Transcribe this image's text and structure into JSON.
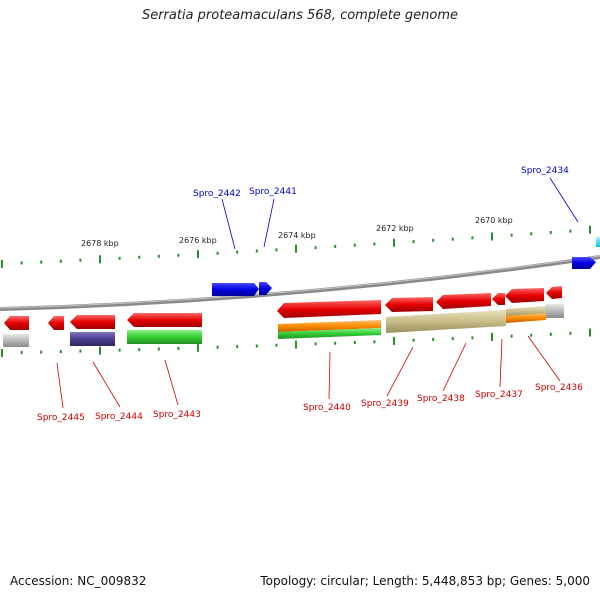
{
  "title": "Serratia proteamaculans 568, complete genome",
  "footer": {
    "accession": "Accession: NC_009832",
    "summary": "Topology: circular; Length: 5,448,853 bp; Genes: 5,000"
  },
  "colors": {
    "backbone": "#808080",
    "tick": "#2e8b2e",
    "forward_gene": "#0000cc",
    "reverse_gene": "#e00000",
    "label_forward": "#0000cc",
    "label_reverse": "#cc0000",
    "orange": "#ff8c00",
    "green": "#33cc33",
    "purple": "#4b3f8f",
    "olive": "#c8bc88",
    "gray": "#b8b8b8",
    "cyan": "#00e5ff"
  },
  "ruler": {
    "labels": [
      "2678 kbp",
      "2676 kbp",
      "2674 kbp",
      "2672 kbp",
      "2670 kbp"
    ]
  },
  "gene_labels": {
    "forward": [
      "Spro_2442",
      "Spro_2441",
      "Spro_2434"
    ],
    "reverse": [
      "Spro_2445",
      "Spro_2444",
      "Spro_2443",
      "Spro_2440",
      "Spro_2439",
      "Spro_2438",
      "Spro_2437",
      "Spro_2436"
    ]
  }
}
